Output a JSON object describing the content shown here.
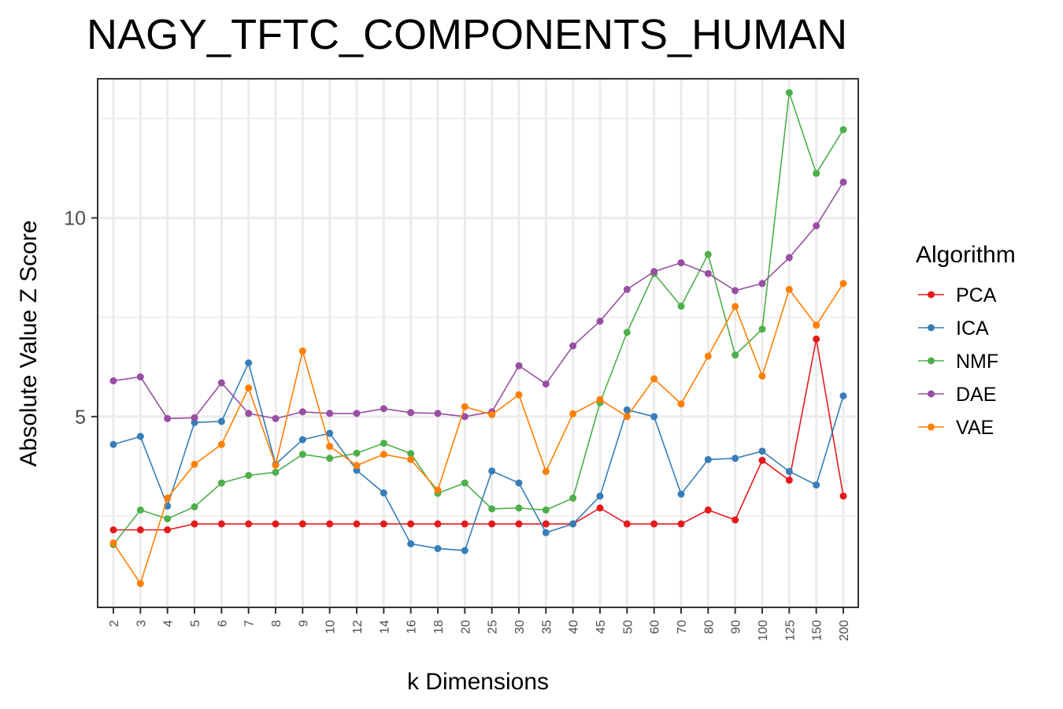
{
  "chart_data": {
    "type": "line",
    "title": "NAGY_TFTC_COMPONENTS_HUMAN",
    "xlabel": "k Dimensions",
    "ylabel": "Absolute Value Z Score",
    "categories": [
      "2",
      "3",
      "4",
      "5",
      "6",
      "7",
      "8",
      "9",
      "10",
      "12",
      "14",
      "16",
      "18",
      "20",
      "25",
      "30",
      "35",
      "40",
      "45",
      "50",
      "60",
      "70",
      "80",
      "90",
      "100",
      "125",
      "150",
      "200"
    ],
    "ylim": [
      0.2,
      13.5
    ],
    "yticks": [
      5,
      10
    ],
    "grid": true,
    "legend": {
      "title": "Algorithm",
      "position": "right"
    },
    "series": [
      {
        "name": "PCA",
        "color": "#e41a1c",
        "values": [
          2.15,
          2.15,
          2.15,
          2.3,
          2.3,
          2.3,
          2.3,
          2.3,
          2.3,
          2.3,
          2.3,
          2.3,
          2.3,
          2.3,
          2.3,
          2.3,
          2.3,
          2.3,
          2.7,
          2.3,
          2.3,
          2.3,
          2.65,
          2.4,
          3.9,
          3.4,
          6.95,
          3.0
        ]
      },
      {
        "name": "ICA",
        "color": "#377eb8",
        "values": [
          4.3,
          4.5,
          2.75,
          4.85,
          4.88,
          6.35,
          3.8,
          4.42,
          4.58,
          3.65,
          3.08,
          1.8,
          1.68,
          1.63,
          3.63,
          3.33,
          2.08,
          2.3,
          3.0,
          5.17,
          5.0,
          3.05,
          3.92,
          3.95,
          4.13,
          3.62,
          3.28,
          5.52
        ]
      },
      {
        "name": "NMF",
        "color": "#4daf4a",
        "values": [
          1.78,
          2.65,
          2.43,
          2.73,
          3.33,
          3.52,
          3.6,
          4.05,
          3.95,
          4.08,
          4.33,
          4.07,
          3.07,
          3.33,
          2.68,
          2.7,
          2.65,
          2.95,
          5.35,
          7.12,
          8.6,
          7.78,
          9.08,
          6.55,
          7.2,
          13.15,
          11.12,
          12.22
        ]
      },
      {
        "name": "DAE",
        "color": "#984ea3",
        "values": [
          5.9,
          6.0,
          4.95,
          4.97,
          5.85,
          5.08,
          4.95,
          5.12,
          5.08,
          5.08,
          5.2,
          5.1,
          5.08,
          5.0,
          5.12,
          6.28,
          5.82,
          6.78,
          7.4,
          8.2,
          8.65,
          8.87,
          8.6,
          8.17,
          8.35,
          9.0,
          9.8,
          10.9
        ]
      },
      {
        "name": "VAE",
        "color": "#ff7f00",
        "values": [
          1.82,
          0.8,
          2.95,
          3.8,
          4.3,
          5.72,
          3.78,
          6.65,
          4.25,
          3.77,
          4.05,
          3.92,
          3.15,
          5.25,
          5.05,
          5.55,
          3.62,
          5.07,
          5.43,
          5.0,
          5.95,
          5.32,
          6.52,
          7.77,
          6.02,
          8.2,
          7.3,
          8.35
        ]
      }
    ]
  }
}
